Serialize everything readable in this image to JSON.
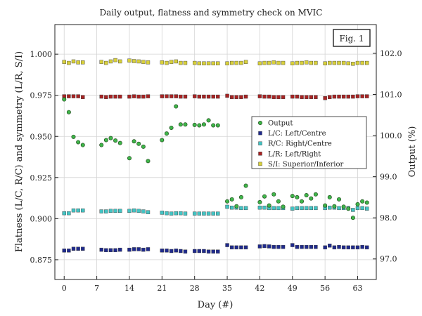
{
  "chart_data": {
    "type": "scatter",
    "title": "Daily output, flatness and symmetry check on MVIC",
    "xlabel": "Day (#)",
    "ylabel": "Flatness (L/C, R/C) and symmetry (L/R, S/I)",
    "y2label": "Output (%)",
    "annotation": "Fig. 1",
    "xlim": [
      -2,
      67
    ],
    "ylim": [
      0.863,
      1.018
    ],
    "y2lim": [
      96.5,
      102.7
    ],
    "xticks": [
      0,
      7,
      14,
      21,
      28,
      35,
      42,
      49,
      56,
      63
    ],
    "yticks": [
      0.875,
      0.9,
      0.925,
      0.95,
      0.975,
      1.0
    ],
    "ytick_labels": [
      "0.875",
      "0.900",
      "0.925",
      "0.950",
      "0.975",
      "1.000"
    ],
    "y2ticks": [
      97.0,
      98.0,
      99.0,
      100.0,
      101.0,
      102.0
    ],
    "y2tick_labels": [
      "97.0",
      "98.0",
      "99.0",
      "100.0",
      "101.0",
      "102.0"
    ],
    "grid": true,
    "legend_position": "center-right",
    "days": [
      0,
      1,
      2,
      3,
      4,
      8,
      9,
      10,
      11,
      12,
      14,
      15,
      16,
      17,
      18,
      21,
      22,
      23,
      24,
      25,
      26,
      28,
      29,
      30,
      31,
      32,
      33,
      35,
      36,
      37,
      38,
      39,
      42,
      43,
      44,
      45,
      46,
      47,
      49,
      50,
      51,
      52,
      53,
      54,
      56,
      57,
      58,
      59,
      60,
      61,
      62,
      63,
      64,
      65
    ],
    "series": [
      {
        "name": "Output",
        "axis": "right",
        "color": "#3fb54a",
        "marker": "circle",
        "values": [
          100.88,
          100.57,
          99.97,
          99.84,
          99.77,
          99.77,
          99.89,
          99.94,
          99.88,
          99.82,
          99.45,
          99.86,
          99.8,
          99.73,
          99.38,
          99.89,
          100.05,
          100.19,
          100.71,
          100.27,
          100.27,
          100.26,
          100.25,
          100.27,
          100.37,
          100.25,
          100.25,
          98.4,
          98.45,
          98.28,
          98.5,
          98.78,
          98.38,
          98.52,
          98.3,
          98.57,
          98.4,
          98.27,
          98.53,
          98.5,
          98.4,
          98.55,
          98.47,
          98.57,
          98.3,
          98.5,
          98.28,
          98.45,
          98.27,
          98.22,
          98.0,
          98.33,
          98.4,
          98.37
        ]
      },
      {
        "name": "L/C: Left/Centre",
        "axis": "left",
        "color": "#1f2a8c",
        "marker": "square",
        "values": [
          0.8806,
          0.8806,
          0.8817,
          0.8817,
          0.8817,
          0.8811,
          0.8808,
          0.8808,
          0.8808,
          0.8811,
          0.8811,
          0.8814,
          0.8814,
          0.8811,
          0.8814,
          0.8806,
          0.8806,
          0.8803,
          0.8806,
          0.8803,
          0.88,
          0.8803,
          0.8803,
          0.8803,
          0.88,
          0.88,
          0.88,
          0.8839,
          0.8825,
          0.8825,
          0.8825,
          0.8825,
          0.8831,
          0.8833,
          0.8831,
          0.8828,
          0.8828,
          0.8828,
          0.8839,
          0.8828,
          0.8828,
          0.8828,
          0.8828,
          0.8828,
          0.8825,
          0.8836,
          0.8825,
          0.8828,
          0.8825,
          0.8825,
          0.8825,
          0.8825,
          0.8828,
          0.8825
        ]
      },
      {
        "name": "R/C: Right/Centre",
        "axis": "left",
        "color": "#43c3c3",
        "marker": "square",
        "values": [
          0.9033,
          0.9033,
          0.905,
          0.905,
          0.905,
          0.9044,
          0.9044,
          0.9047,
          0.9047,
          0.9047,
          0.9047,
          0.905,
          0.9047,
          0.9044,
          0.9039,
          0.9036,
          0.9033,
          0.9031,
          0.9033,
          0.9033,
          0.9031,
          0.9031,
          0.9031,
          0.9031,
          0.9031,
          0.9031,
          0.9031,
          0.9072,
          0.9067,
          0.9067,
          0.9064,
          0.9064,
          0.9067,
          0.9067,
          0.9064,
          0.9064,
          0.9064,
          0.9064,
          0.9061,
          0.9064,
          0.9064,
          0.9064,
          0.9064,
          0.9064,
          0.9064,
          0.9067,
          0.9067,
          0.9064,
          0.9064,
          0.9064,
          0.9053,
          0.9064,
          0.9064,
          0.9061
        ]
      },
      {
        "name": "L/R: Left/Right",
        "axis": "left",
        "color": "#a82323",
        "marker": "square",
        "values": [
          0.9744,
          0.9744,
          0.9744,
          0.9744,
          0.9739,
          0.9742,
          0.9739,
          0.9742,
          0.9742,
          0.9742,
          0.9742,
          0.9744,
          0.9742,
          0.9742,
          0.9744,
          0.9744,
          0.9744,
          0.9744,
          0.9744,
          0.9742,
          0.9742,
          0.9744,
          0.9742,
          0.9742,
          0.9742,
          0.9742,
          0.9742,
          0.9747,
          0.9739,
          0.9739,
          0.9739,
          0.9742,
          0.9744,
          0.9742,
          0.9742,
          0.9739,
          0.9739,
          0.9739,
          0.9742,
          0.9742,
          0.9739,
          0.9739,
          0.9739,
          0.9739,
          0.9733,
          0.9739,
          0.9742,
          0.9742,
          0.9742,
          0.9742,
          0.9742,
          0.9744,
          0.9744,
          0.9744
        ]
      },
      {
        "name": "S/I: Superior/Inferior",
        "axis": "left",
        "color": "#d8d03a",
        "marker": "square",
        "values": [
          0.9953,
          0.9947,
          0.9956,
          0.995,
          0.995,
          0.9953,
          0.9947,
          0.9956,
          0.9964,
          0.9956,
          0.9961,
          0.9958,
          0.9956,
          0.9953,
          0.995,
          0.995,
          0.9947,
          0.9953,
          0.9956,
          0.9947,
          0.9947,
          0.9947,
          0.9944,
          0.9944,
          0.9944,
          0.9944,
          0.9944,
          0.9944,
          0.9947,
          0.9947,
          0.9947,
          0.9953,
          0.9944,
          0.9947,
          0.9947,
          0.995,
          0.9947,
          0.9947,
          0.9944,
          0.9947,
          0.9947,
          0.995,
          0.9947,
          0.9947,
          0.9944,
          0.9947,
          0.9947,
          0.9947,
          0.9947,
          0.9944,
          0.9942,
          0.9947,
          0.9947,
          0.9947
        ]
      }
    ]
  }
}
